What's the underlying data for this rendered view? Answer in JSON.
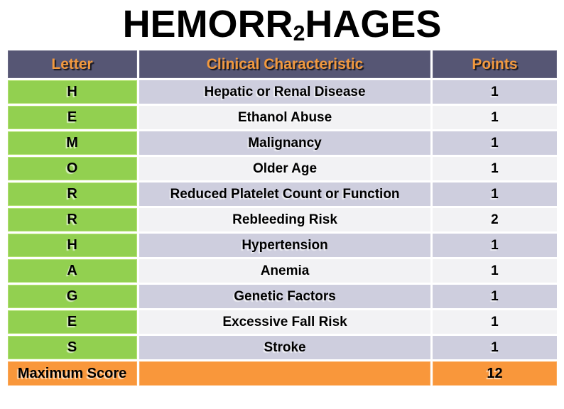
{
  "title": {
    "prefix": "HEMORR",
    "subscript": "2",
    "suffix": "HAGES"
  },
  "table": {
    "columns": [
      "Letter",
      "Clinical Characteristic",
      "Points"
    ],
    "rows": [
      {
        "letter": "H",
        "characteristic": "Hepatic or Renal Disease",
        "points": "1"
      },
      {
        "letter": "E",
        "characteristic": "Ethanol Abuse",
        "points": "1"
      },
      {
        "letter": "M",
        "characteristic": "Malignancy",
        "points": "1"
      },
      {
        "letter": "O",
        "characteristic": "Older Age",
        "points": "1"
      },
      {
        "letter": "R",
        "characteristic": "Reduced Platelet Count or Function",
        "points": "1"
      },
      {
        "letter": "R",
        "characteristic": "Rebleeding Risk",
        "points": "2"
      },
      {
        "letter": "H",
        "characteristic": "Hypertension",
        "points": "1"
      },
      {
        "letter": "A",
        "characteristic": "Anemia",
        "points": "1"
      },
      {
        "letter": "G",
        "characteristic": "Genetic Factors",
        "points": "1"
      },
      {
        "letter": "E",
        "characteristic": "Excessive Fall Risk",
        "points": "1"
      },
      {
        "letter": "S",
        "characteristic": "Stroke",
        "points": "1"
      }
    ],
    "footer": {
      "label": "Maximum Score",
      "characteristic": "",
      "points": "12"
    }
  },
  "chart_data": {
    "type": "table",
    "title": "HEMORR2HAGES",
    "columns": [
      "Letter",
      "Clinical Characteristic",
      "Points"
    ],
    "rows": [
      [
        "H",
        "Hepatic or Renal Disease",
        1
      ],
      [
        "E",
        "Ethanol Abuse",
        1
      ],
      [
        "M",
        "Malignancy",
        1
      ],
      [
        "O",
        "Older Age",
        1
      ],
      [
        "R",
        "Reduced Platelet Count or Function",
        1
      ],
      [
        "R",
        "Rebleeding Risk",
        2
      ],
      [
        "H",
        "Hypertension",
        1
      ],
      [
        "A",
        "Anemia",
        1
      ],
      [
        "G",
        "Genetic Factors",
        1
      ],
      [
        "E",
        "Excessive Fall Risk",
        1
      ],
      [
        "S",
        "Stroke",
        1
      ],
      [
        "Maximum Score",
        "",
        12
      ]
    ]
  },
  "colors": {
    "page_bg": "#FFFFFF",
    "title_text": "#000000",
    "header_bg": "#565674",
    "header_text": "#F2993E",
    "letter_bg": "#92D050",
    "row_odd_bg": "#CECEDE",
    "row_even_bg": "#F2F2F4",
    "footer_bg": "#F9973B",
    "body_text": "#000000"
  }
}
